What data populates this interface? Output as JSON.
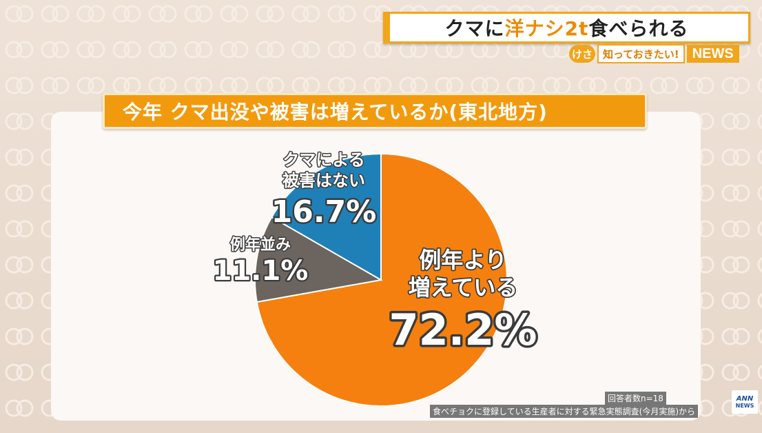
{
  "headline": {
    "part1": "クマに",
    "highlight": "洋ナシ2t",
    "part2": "食べられる"
  },
  "program": {
    "logo": "けさ",
    "subtitle": "知っておきたい!",
    "news": "NEWS"
  },
  "chart_data": {
    "type": "pie",
    "title": "今年 クマ出没や被害は増えているか(東北地方)",
    "slices": [
      {
        "label_lines": [
          "例年より",
          "増えている"
        ],
        "value_text": "72.2%",
        "value": 72.2,
        "color": "#f5800f"
      },
      {
        "label_lines": [
          "例年並み"
        ],
        "value_text": "11.1%",
        "value": 11.1,
        "color": "#6b645f"
      },
      {
        "label_lines": [
          "クマによる",
          "被害はない"
        ],
        "value_text": "16.7%",
        "value": 16.7,
        "color": "#1f80b8"
      }
    ]
  },
  "source": {
    "n": "回答者数n=18",
    "note": "食べチョクに登録している生産者に対する緊急実態調査(今月実施)から"
  },
  "logo": {
    "ann": "ANN",
    "news": "NEWS"
  }
}
